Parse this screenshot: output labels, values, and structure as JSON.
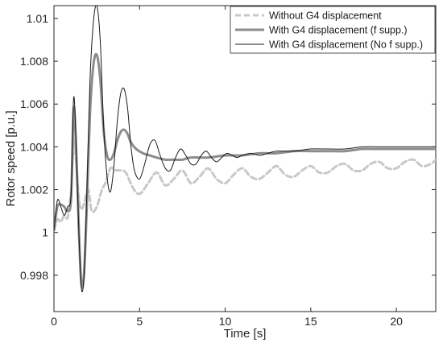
{
  "chart_data": {
    "type": "line",
    "title": "",
    "xlabel": "Time [s]",
    "ylabel": "Rotor speed [p.u.]",
    "xlim": [
      0,
      22.3
    ],
    "ylim": [
      0.9963,
      1.0106
    ],
    "xticks": [
      0,
      5,
      10,
      15,
      20
    ],
    "xtick_labels": [
      "0",
      "5",
      "10",
      "15",
      "20"
    ],
    "yticks": [
      0.998,
      1.0,
      1.002,
      1.004,
      1.006,
      1.008,
      1.01
    ],
    "ytick_labels": [
      "0.998",
      "1",
      "1.002",
      "1.004",
      "1.006",
      "1.008",
      "1.01"
    ],
    "grid": false,
    "legend_position": "top-right",
    "colors": {
      "without": "#c8c8c8",
      "with_fsupp": "#8c8c8c",
      "with_no_fsupp": "#1a1a1a",
      "axes": "#262626"
    },
    "series": [
      {
        "name": "Without G4 displacement",
        "style": "dashed",
        "x": [
          0,
          0.2,
          0.4,
          0.6,
          0.8,
          1.0,
          1.1,
          1.2,
          1.3,
          1.5,
          1.7,
          2.0,
          2.2,
          2.5,
          2.8,
          3.0,
          3.3,
          3.6,
          3.9,
          4.2,
          4.6,
          5.0,
          5.5,
          6.0,
          6.5,
          7.0,
          7.5,
          8.0,
          8.5,
          9.0,
          9.5,
          10.0,
          10.5,
          11.0,
          11.5,
          12.0,
          12.5,
          13.0,
          13.5,
          14.0,
          14.5,
          15.0,
          15.5,
          16.0,
          16.5,
          17.0,
          17.5,
          18.0,
          18.5,
          19.0,
          19.5,
          20.0,
          20.5,
          21.0,
          21.5,
          22.0,
          22.3
        ],
        "y": [
          1.0001,
          1.0006,
          1.0005,
          1.0008,
          1.0007,
          1.0019,
          1.0035,
          1.0043,
          1.0032,
          1.0013,
          1.0012,
          1.002,
          1.001,
          1.0012,
          1.002,
          1.0023,
          1.003,
          1.0029,
          1.0029,
          1.0028,
          1.0021,
          1.0018,
          1.0023,
          1.0028,
          1.0022,
          1.0025,
          1.0029,
          1.0023,
          1.0026,
          1.003,
          1.0025,
          1.0023,
          1.0027,
          1.003,
          1.0026,
          1.0025,
          1.0028,
          1.0031,
          1.0027,
          1.0026,
          1.0029,
          1.0031,
          1.0028,
          1.0028,
          1.0031,
          1.0032,
          1.0029,
          1.0029,
          1.0032,
          1.0033,
          1.003,
          1.003,
          1.0033,
          1.0034,
          1.0031,
          1.0032,
          1.0034
        ]
      },
      {
        "name": "With G4 displacement (f supp.)",
        "style": "solid-thick",
        "x": [
          0,
          0.2,
          0.4,
          0.6,
          0.8,
          1.0,
          1.15,
          1.3,
          1.45,
          1.6,
          1.75,
          1.9,
          2.1,
          2.3,
          2.5,
          2.7,
          2.9,
          3.1,
          3.3,
          3.5,
          3.7,
          3.9,
          4.1,
          4.3,
          4.5,
          4.8,
          5.2,
          5.6,
          6.0,
          6.5,
          7.0,
          7.5,
          8.0,
          9.0,
          10.0,
          11.0,
          12.0,
          13.0,
          14.0,
          15.0,
          16.0,
          17.0,
          18.0,
          19.0,
          20.0,
          21.0,
          22.3
        ],
        "y": [
          1.0001,
          1.0012,
          1.0013,
          1.0012,
          1.001,
          1.0016,
          1.0058,
          1.0038,
          1.0002,
          0.9976,
          0.998,
          1.0008,
          1.0055,
          1.0078,
          1.0083,
          1.0072,
          1.0048,
          1.0036,
          1.0034,
          1.0037,
          1.0043,
          1.0047,
          1.0048,
          1.0046,
          1.0042,
          1.0039,
          1.0037,
          1.0036,
          1.0035,
          1.0034,
          1.0034,
          1.0034,
          1.0035,
          1.0035,
          1.0036,
          1.0036,
          1.0037,
          1.0037,
          1.0038,
          1.0038,
          1.0038,
          1.0038,
          1.0039,
          1.0039,
          1.0039,
          1.0039,
          1.0039
        ]
      },
      {
        "name": "With G4 displacement (No f supp.)",
        "style": "solid-thin",
        "x": [
          0,
          0.2,
          0.4,
          0.6,
          0.8,
          1.0,
          1.15,
          1.3,
          1.45,
          1.6,
          1.75,
          1.9,
          2.1,
          2.3,
          2.5,
          2.7,
          2.9,
          3.1,
          3.3,
          3.5,
          3.7,
          3.9,
          4.1,
          4.3,
          4.5,
          4.7,
          5.0,
          5.3,
          5.6,
          5.9,
          6.2,
          6.5,
          6.8,
          7.1,
          7.4,
          7.7,
          8.0,
          8.3,
          8.6,
          8.9,
          9.2,
          9.5,
          9.8,
          10.1,
          10.4,
          10.7,
          11.0,
          11.5,
          12.0,
          12.5,
          13.0,
          14.0,
          15.0,
          16.0,
          17.0,
          18.0,
          19.0,
          20.0,
          21.0,
          22.3
        ],
        "y": [
          1.0001,
          1.0015,
          1.0012,
          1.0008,
          1.0012,
          1.0018,
          1.0063,
          1.004,
          1.0001,
          0.9974,
          0.9979,
          1.0013,
          1.007,
          1.0098,
          1.0106,
          1.009,
          1.005,
          1.0026,
          1.0019,
          1.0031,
          1.0052,
          1.0065,
          1.0067,
          1.0058,
          1.004,
          1.0029,
          1.0025,
          1.0032,
          1.0041,
          1.0043,
          1.0036,
          1.003,
          1.0029,
          1.0035,
          1.0039,
          1.0036,
          1.0032,
          1.0032,
          1.0036,
          1.0038,
          1.0035,
          1.0033,
          1.0035,
          1.0037,
          1.0036,
          1.0035,
          1.0036,
          1.0037,
          1.0036,
          1.0037,
          1.0038,
          1.0038,
          1.0039,
          1.0039,
          1.0039,
          1.004,
          1.004,
          1.004,
          1.004,
          1.004
        ]
      }
    ]
  }
}
